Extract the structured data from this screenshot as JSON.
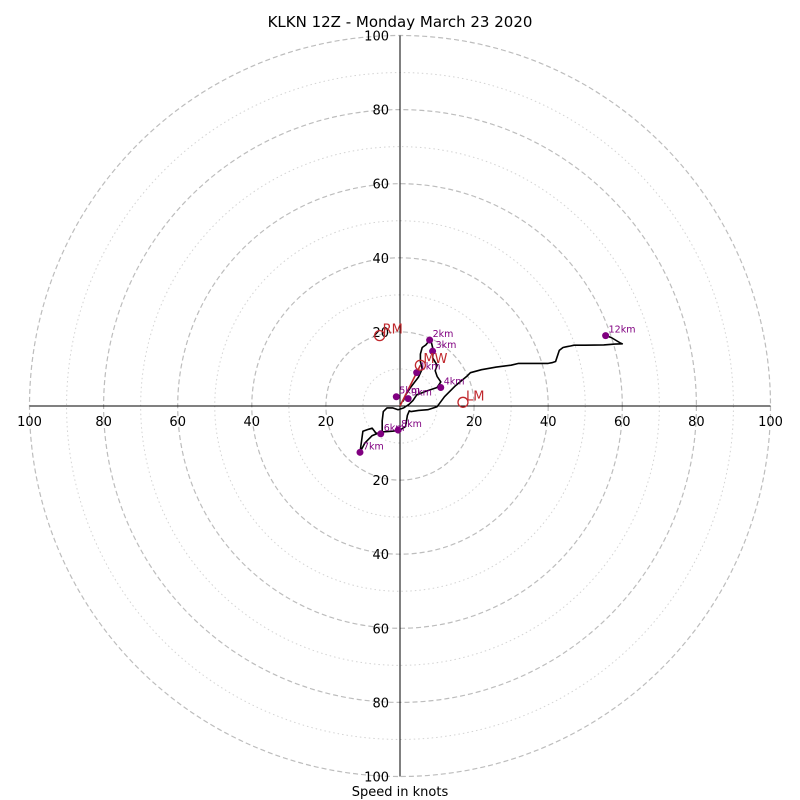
{
  "chart_data": {
    "type": "scatter",
    "title": "KLKN 12Z - Monday March 23 2020",
    "xlabel": "Speed in knots",
    "ylabel": "",
    "xlim": [
      -100,
      100
    ],
    "ylim": [
      -100,
      100
    ],
    "tick_labels": [
      "20",
      "40",
      "60",
      "80",
      "100"
    ],
    "tick_values": [
      20,
      40,
      60,
      80,
      100
    ],
    "rings_dashed": [
      20,
      40,
      60,
      80,
      100
    ],
    "rings_dotted": [
      10,
      30,
      50,
      70,
      90
    ],
    "hodograph_path": [
      [
        0.8,
        1.2
      ],
      [
        1.5,
        3.0
      ],
      [
        3.0,
        5.2
      ],
      [
        5.0,
        7.8
      ],
      [
        6.0,
        10.0
      ],
      [
        5.5,
        12.0
      ],
      [
        5.5,
        14.0
      ],
      [
        6.0,
        15.8
      ],
      [
        7.0,
        16.5
      ],
      [
        8.0,
        17.8
      ],
      [
        8.5,
        17.0
      ],
      [
        9.0,
        15.0
      ],
      [
        8.8,
        13.0
      ],
      [
        10.0,
        11.0
      ],
      [
        9.5,
        9.5
      ],
      [
        10.0,
        8.0
      ],
      [
        11.0,
        6.5
      ],
      [
        10.0,
        5.0
      ],
      [
        7.0,
        4.0
      ],
      [
        4.5,
        3.0
      ],
      [
        3.5,
        1.5
      ],
      [
        2.5,
        0.5
      ],
      [
        1.0,
        -0.5
      ],
      [
        -0.5,
        -1.0
      ],
      [
        -2.0,
        -0.5
      ],
      [
        -3.5,
        -0.5
      ],
      [
        -4.5,
        -1.5
      ],
      [
        -4.8,
        -4.0
      ],
      [
        -4.8,
        -7.0
      ],
      [
        -5.2,
        -7.5
      ],
      [
        -6.5,
        -7.3
      ],
      [
        -7.5,
        -6.0
      ],
      [
        -8.5,
        -6.3
      ],
      [
        -10.0,
        -6.8
      ],
      [
        -10.8,
        -12.5
      ],
      [
        -9.5,
        -10.0
      ],
      [
        -7.5,
        -8.0
      ],
      [
        -5.0,
        -7.0
      ],
      [
        -2.0,
        -6.8
      ],
      [
        0.0,
        -6.5
      ],
      [
        1.5,
        -5.5
      ],
      [
        2.0,
        -2.5
      ],
      [
        2.5,
        -1.3
      ],
      [
        3.0,
        -1.5
      ],
      [
        5.0,
        -1.2
      ],
      [
        7.5,
        -1.0
      ],
      [
        10.0,
        -0.2
      ],
      [
        12.0,
        2.5
      ],
      [
        15.0,
        5.5
      ],
      [
        18.0,
        8.0
      ],
      [
        19.0,
        9.0
      ],
      [
        22.0,
        9.8
      ],
      [
        26.0,
        10.5
      ],
      [
        30.0,
        11.0
      ],
      [
        32.0,
        11.5
      ],
      [
        36.0,
        11.5
      ],
      [
        40.0,
        11.5
      ],
      [
        41.0,
        11.7
      ],
      [
        42.0,
        12.0
      ],
      [
        43.0,
        15.0
      ],
      [
        44.0,
        15.8
      ],
      [
        45.0,
        16.0
      ],
      [
        46.0,
        16.2
      ],
      [
        47.0,
        16.4
      ],
      [
        50.0,
        16.4
      ],
      [
        55.0,
        16.5
      ],
      [
        58.0,
        16.7
      ],
      [
        60.0,
        16.8
      ],
      [
        59.5,
        17.0
      ],
      [
        57.0,
        18.5
      ],
      [
        55.5,
        19.0
      ]
    ],
    "height_points": [
      {
        "label": "1km",
        "u": 4.5,
        "v": 9.0
      },
      {
        "label": "2km",
        "u": 8.0,
        "v": 17.8
      },
      {
        "label": "3km",
        "u": 8.8,
        "v": 14.8
      },
      {
        "label": "4km",
        "u": 11.0,
        "v": 5.0
      },
      {
        "label": "5km",
        "u": -1.0,
        "v": 2.5
      },
      {
        "label": "6km",
        "u": -5.2,
        "v": -7.5
      },
      {
        "label": "7km",
        "u": -10.8,
        "v": -12.5
      },
      {
        "label": "8km",
        "u": -0.5,
        "v": -6.5
      },
      {
        "label": "9km",
        "u": 2.2,
        "v": 2.0
      },
      {
        "label": "12km",
        "u": 55.5,
        "v": 19.0
      }
    ],
    "storm_motions": [
      {
        "label": "RM",
        "u": -5.5,
        "v": 19.0
      },
      {
        "label": "MW",
        "u": 5.5,
        "v": 11.0
      },
      {
        "label": "LM",
        "u": 17.0,
        "v": 1.0
      }
    ],
    "mean_wind_vector": {
      "from": [
        0,
        0
      ],
      "to": [
        5.5,
        11.0
      ]
    },
    "colors": {
      "ring": "#bdbdbd",
      "axis": "#000000",
      "trace": "#000000",
      "height_point": "#800080",
      "height_label": "#800080",
      "storm_motion": "#c0282d"
    }
  }
}
